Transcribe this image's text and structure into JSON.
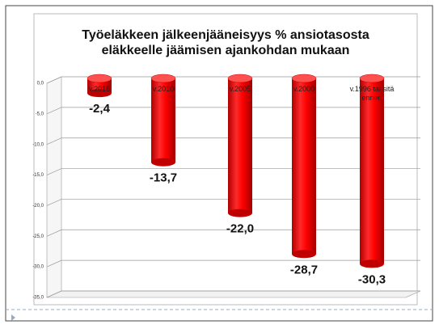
{
  "chart_data": {
    "type": "bar3d",
    "title": [
      "Työeläkkeen jälkeenjääneisyys % ansiotasosta",
      "eläkkeelle jäämisen ajankohdan mukaan"
    ],
    "categories": [
      "v.2016",
      "v.2010",
      "v.2005",
      "v.2000",
      "v.1996 tai sitä ennen"
    ],
    "values": [
      -2.4,
      -13.7,
      -22.0,
      -28.7,
      -30.3
    ],
    "value_labels": [
      "-2,4",
      "-13,7",
      "-22,0",
      "-28,7",
      "-30,3"
    ],
    "color": "#ff0000",
    "ylim": [
      -35,
      0
    ],
    "yticks": [
      {
        "value": 0,
        "label": "0,0"
      },
      {
        "value": -5,
        "label": "-5,0"
      },
      {
        "value": -10,
        "label": "-10,0"
      },
      {
        "value": -15,
        "label": "-15,0"
      },
      {
        "value": -20,
        "label": "-20,0"
      },
      {
        "value": -25,
        "label": "-25,0"
      },
      {
        "value": -30,
        "label": "-30,0"
      },
      {
        "value": -35,
        "label": "-35,0"
      }
    ],
    "grid": true
  }
}
